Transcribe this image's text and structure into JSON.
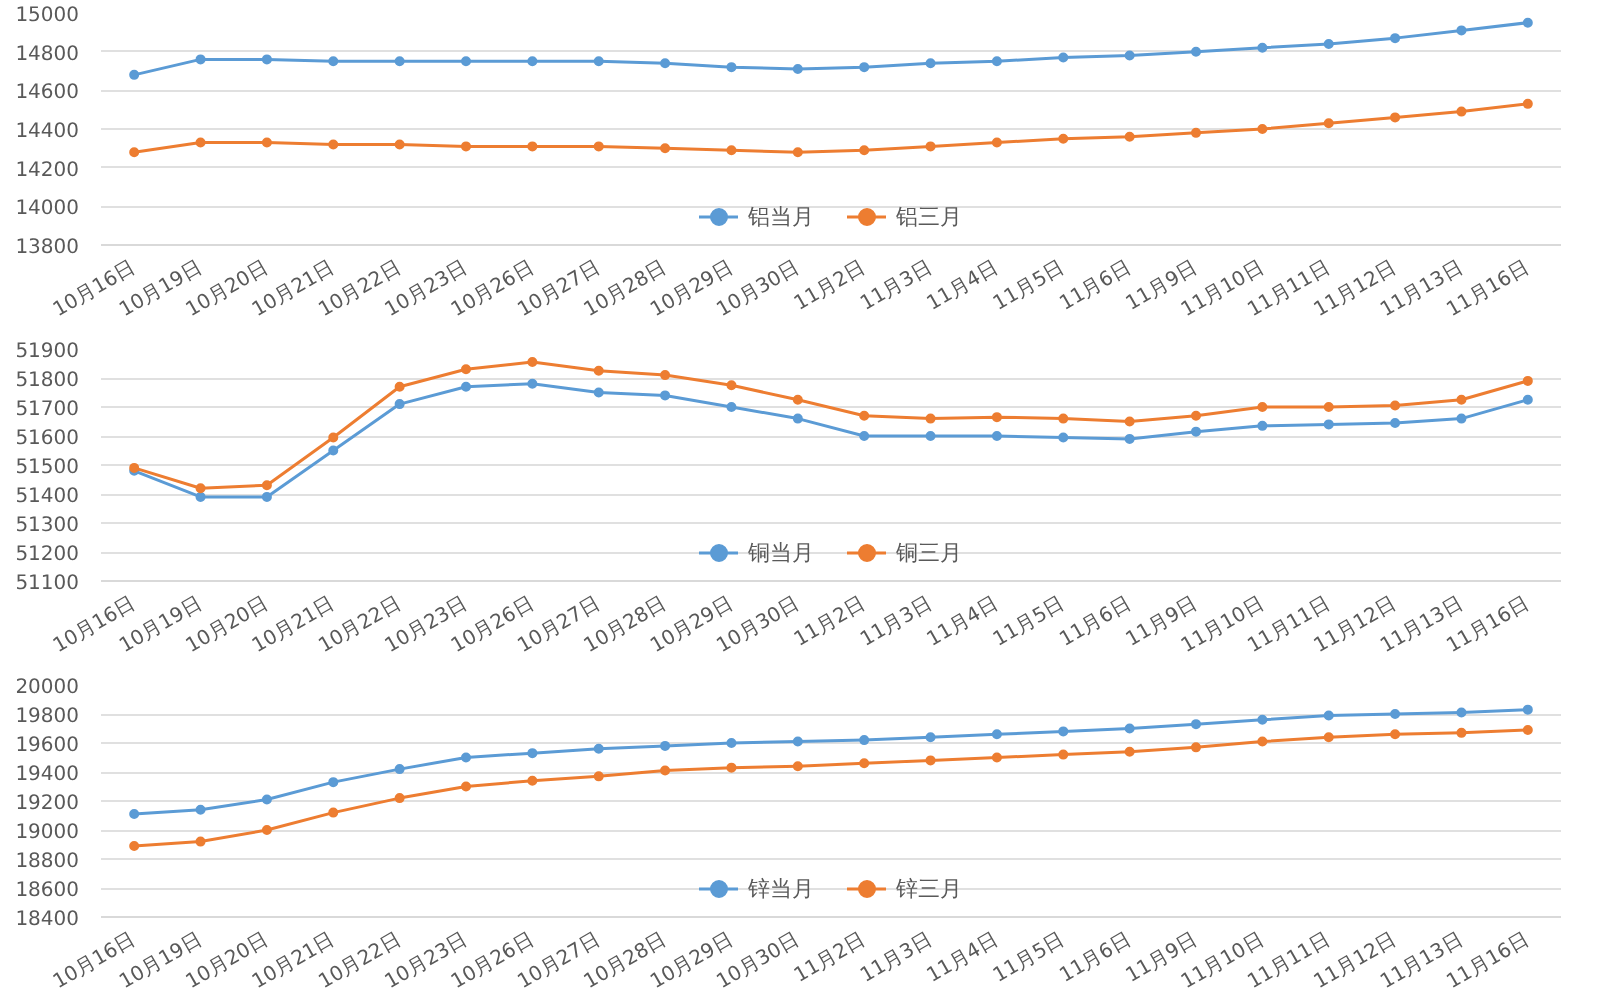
{
  "chart_data": [
    {
      "type": "line",
      "categories": [
        "10月16日",
        "10月19日",
        "10月20日",
        "10月21日",
        "10月22日",
        "10月23日",
        "10月26日",
        "10月27日",
        "10月28日",
        "10月29日",
        "10月30日",
        "11月2日",
        "11月3日",
        "11月4日",
        "11月5日",
        "11月6日",
        "11月9日",
        "11月10日",
        "11月11日",
        "11月12日",
        "11月13日",
        "11月16日"
      ],
      "series": [
        {
          "name": "铝当月",
          "color": "#5b9bd5",
          "values": [
            14680,
            14760,
            14760,
            14750,
            14750,
            14750,
            14750,
            14750,
            14740,
            14720,
            14710,
            14720,
            14740,
            14750,
            14770,
            14780,
            14800,
            14820,
            14840,
            14870,
            14910,
            14950
          ]
        },
        {
          "name": "铝三月",
          "color": "#ed7d31",
          "values": [
            14280,
            14330,
            14330,
            14320,
            14320,
            14310,
            14310,
            14310,
            14300,
            14290,
            14280,
            14290,
            14310,
            14330,
            14350,
            14360,
            14380,
            14400,
            14430,
            14460,
            14490,
            14530
          ]
        }
      ],
      "ylim": [
        13800,
        15000
      ],
      "yticks": [
        13800,
        14000,
        14200,
        14400,
        14600,
        14800,
        15000
      ],
      "grid": "y",
      "legend": "bottom",
      "marker": "circle"
    },
    {
      "type": "line",
      "categories": [
        "10月16日",
        "10月19日",
        "10月20日",
        "10月21日",
        "10月22日",
        "10月23日",
        "10月26日",
        "10月27日",
        "10月28日",
        "10月29日",
        "10月30日",
        "11月2日",
        "11月3日",
        "11月4日",
        "11月5日",
        "11月6日",
        "11月9日",
        "11月10日",
        "11月11日",
        "11月12日",
        "11月13日",
        "11月16日"
      ],
      "series": [
        {
          "name": "铜当月",
          "color": "#5b9bd5",
          "values": [
            51480,
            51390,
            51390,
            51550,
            51710,
            51770,
            51780,
            51750,
            51740,
            51700,
            51660,
            51600,
            51600,
            51600,
            51595,
            51590,
            51615,
            51635,
            51640,
            51645,
            51660,
            51725
          ]
        },
        {
          "name": "铜三月",
          "color": "#ed7d31",
          "values": [
            51490,
            51420,
            51430,
            51595,
            51770,
            51830,
            51855,
            51825,
            51810,
            51775,
            51725,
            51670,
            51660,
            51665,
            51660,
            51650,
            51670,
            51700,
            51700,
            51705,
            51725,
            51790
          ]
        }
      ],
      "ylim": [
        51100,
        51900
      ],
      "yticks": [
        51100,
        51200,
        51300,
        51400,
        51500,
        51600,
        51700,
        51800,
        51900
      ],
      "grid": "y",
      "legend": "bottom",
      "marker": "circle"
    },
    {
      "type": "line",
      "categories": [
        "10月16日",
        "10月19日",
        "10月20日",
        "10月21日",
        "10月22日",
        "10月23日",
        "10月26日",
        "10月27日",
        "10月28日",
        "10月29日",
        "10月30日",
        "11月2日",
        "11月3日",
        "11月4日",
        "11月5日",
        "11月6日",
        "11月9日",
        "11月10日",
        "11月11日",
        "11月12日",
        "11月13日",
        "11月16日"
      ],
      "series": [
        {
          "name": "锌当月",
          "color": "#5b9bd5",
          "values": [
            19110,
            19140,
            19210,
            19330,
            19420,
            19500,
            19530,
            19560,
            19580,
            19600,
            19610,
            19620,
            19640,
            19660,
            19680,
            19700,
            19730,
            19760,
            19790,
            19800,
            19810,
            19830
          ]
        },
        {
          "name": "锌三月",
          "color": "#ed7d31",
          "values": [
            18890,
            18920,
            19000,
            19120,
            19220,
            19300,
            19340,
            19370,
            19410,
            19430,
            19440,
            19460,
            19480,
            19500,
            19520,
            19540,
            19570,
            19610,
            19640,
            19660,
            19670,
            19690
          ]
        }
      ],
      "ylim": [
        18400,
        20000
      ],
      "yticks": [
        18400,
        18600,
        18800,
        19000,
        19200,
        19400,
        19600,
        19800,
        20000
      ],
      "grid": "y",
      "legend": "bottom",
      "marker": "circle"
    }
  ]
}
